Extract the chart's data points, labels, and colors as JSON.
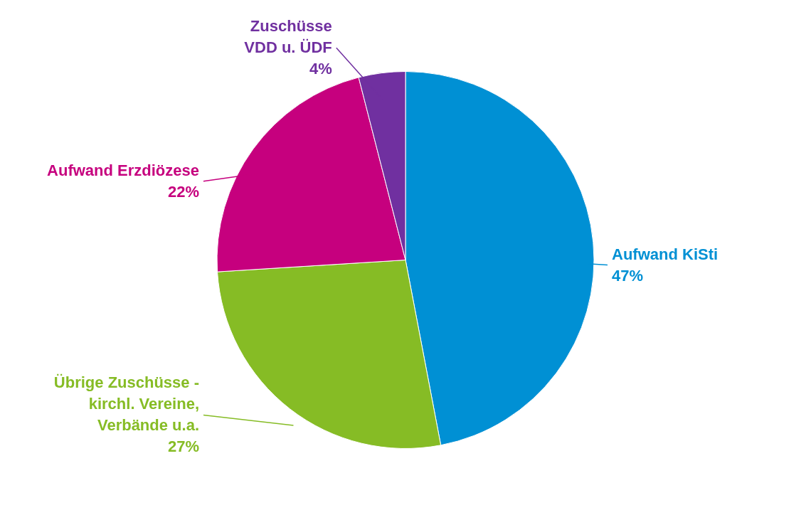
{
  "chart_data": {
    "type": "pie",
    "categories": [
      "Aufwand KiSti",
      "Übrige Zuschüsse - kirchl. Vereine, Verbände u.a.",
      "Aufwand Erzdiözese",
      "Zuschüsse VDD u. ÜDF"
    ],
    "values": [
      47,
      27,
      22,
      4
    ],
    "colors": [
      "#0090d4",
      "#86bc25",
      "#c6007e",
      "#7030a0"
    ],
    "value_labels": [
      "47%",
      "27%",
      "22%",
      "4%"
    ],
    "legend": false
  }
}
